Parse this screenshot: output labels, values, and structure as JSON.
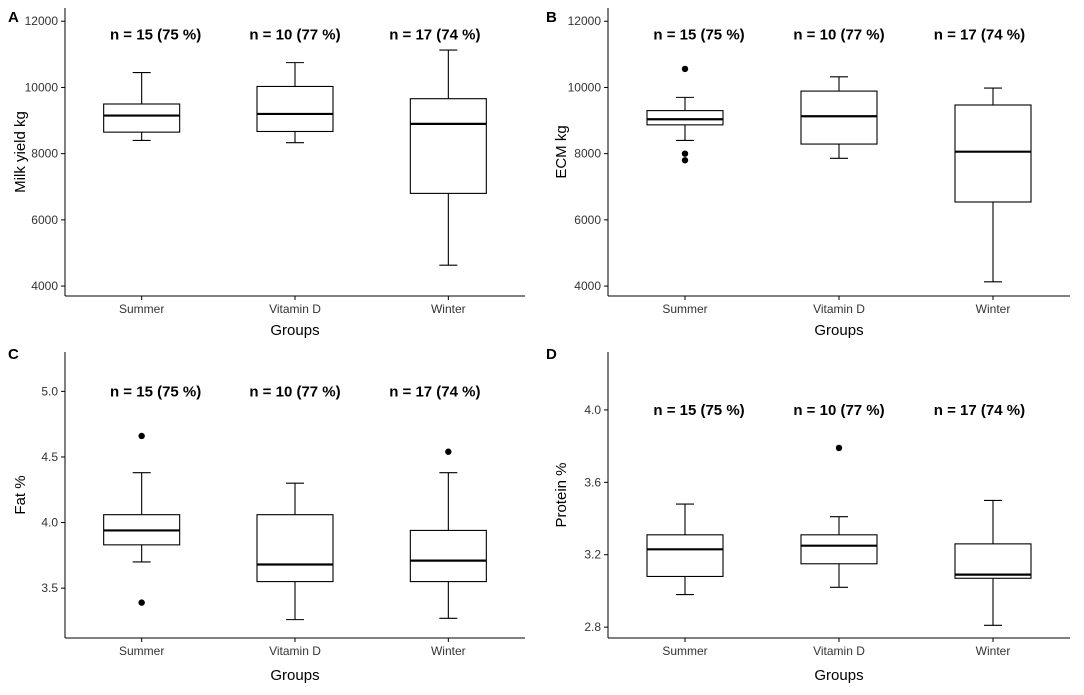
{
  "chart_data": [
    {
      "type": "box",
      "panel": "A",
      "ylabel": "Milk yield kg",
      "xlabel": "Groups",
      "categories": [
        "Summer",
        "Vitamin D",
        "Winter"
      ],
      "ylim": [
        3700,
        12400
      ],
      "yticks": [
        4000,
        6000,
        8000,
        10000,
        12000
      ],
      "ytick_labels": [
        "4000",
        "6000",
        "8000",
        "10000",
        "12000"
      ],
      "annotations": [
        "n = 15 (75 %)",
        "n = 10 (77 %)",
        "n = 17 (74 %)"
      ],
      "annotation_y": 11600,
      "boxes": [
        {
          "whisker_low": 8400,
          "q1": 8650,
          "median": 9150,
          "q3": 9500,
          "whisker_high": 10450,
          "outliers": []
        },
        {
          "whisker_low": 8330,
          "q1": 8670,
          "median": 9200,
          "q3": 10030,
          "whisker_high": 10750,
          "outliers": []
        },
        {
          "whisker_low": 4630,
          "q1": 6800,
          "median": 8900,
          "q3": 9660,
          "whisker_high": 11130,
          "outliers": []
        }
      ]
    },
    {
      "type": "box",
      "panel": "B",
      "ylabel": "ECM kg",
      "xlabel": "Groups",
      "categories": [
        "Summer",
        "Vitamin D",
        "Winter"
      ],
      "ylim": [
        3700,
        12400
      ],
      "yticks": [
        4000,
        6000,
        8000,
        10000,
        12000
      ],
      "ytick_labels": [
        "4000",
        "6000",
        "8000",
        "10000",
        "12000"
      ],
      "annotations": [
        "n = 15 (75 %)",
        "n = 10 (77 %)",
        "n = 17 (74 %)"
      ],
      "annotation_y": 11600,
      "boxes": [
        {
          "whisker_low": 8400,
          "q1": 8870,
          "median": 9040,
          "q3": 9300,
          "whisker_high": 9700,
          "outliers": [
            10560,
            8000,
            7800
          ]
        },
        {
          "whisker_low": 7860,
          "q1": 8290,
          "median": 9130,
          "q3": 9890,
          "whisker_high": 10320,
          "outliers": []
        },
        {
          "whisker_low": 4130,
          "q1": 6540,
          "median": 8060,
          "q3": 9470,
          "whisker_high": 9980,
          "outliers": []
        }
      ]
    },
    {
      "type": "box",
      "panel": "C",
      "ylabel": "Fat %",
      "xlabel": "Groups",
      "categories": [
        "Summer",
        "Vitamin D",
        "Winter"
      ],
      "ylim": [
        3.12,
        5.3
      ],
      "yticks": [
        3.5,
        4.0,
        4.5,
        5.0
      ],
      "ytick_labels": [
        "3.5",
        "4.0",
        "4.5",
        "5.0"
      ],
      "annotations": [
        "n = 15 (75 %)",
        "n = 10 (77 %)",
        "n = 17 (74 %)"
      ],
      "annotation_y": 5.0,
      "boxes": [
        {
          "whisker_low": 3.7,
          "q1": 3.83,
          "median": 3.94,
          "q3": 4.06,
          "whisker_high": 4.38,
          "outliers": [
            4.66,
            3.39
          ]
        },
        {
          "whisker_low": 3.26,
          "q1": 3.55,
          "median": 3.68,
          "q3": 4.06,
          "whisker_high": 4.3,
          "outliers": []
        },
        {
          "whisker_low": 3.27,
          "q1": 3.55,
          "median": 3.71,
          "q3": 3.94,
          "whisker_high": 4.38,
          "outliers": [
            4.54
          ]
        }
      ]
    },
    {
      "type": "box",
      "panel": "D",
      "ylabel": "Protein %",
      "xlabel": "Groups",
      "categories": [
        "Summer",
        "Vitamin D",
        "Winter"
      ],
      "ylim": [
        2.74,
        4.32
      ],
      "yticks": [
        2.8,
        3.2,
        3.6,
        4.0
      ],
      "ytick_labels": [
        "2.8",
        "3.2",
        "3.6",
        "4.0"
      ],
      "annotations": [
        "n = 15 (75 %)",
        "n = 10 (77 %)",
        "n = 17 (74 %)"
      ],
      "annotation_y": 4.0,
      "boxes": [
        {
          "whisker_low": 2.98,
          "q1": 3.08,
          "median": 3.23,
          "q3": 3.31,
          "whisker_high": 3.48,
          "outliers": []
        },
        {
          "whisker_low": 3.02,
          "q1": 3.15,
          "median": 3.25,
          "q3": 3.31,
          "whisker_high": 3.41,
          "outliers": [
            3.79
          ]
        },
        {
          "whisker_low": 2.81,
          "q1": 3.07,
          "median": 3.09,
          "q3": 3.26,
          "whisker_high": 3.5,
          "outliers": []
        }
      ]
    }
  ]
}
